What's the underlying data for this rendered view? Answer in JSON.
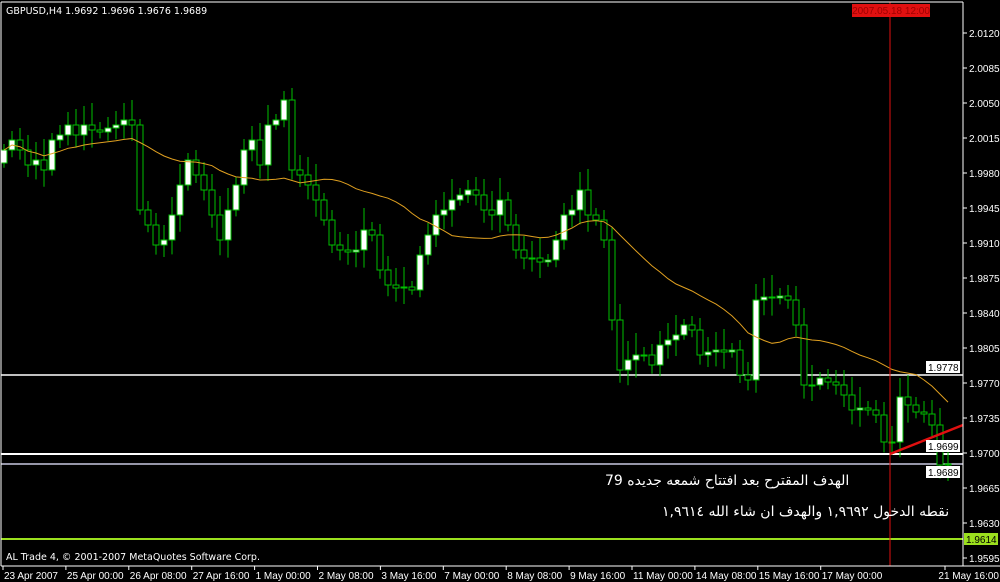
{
  "header": {
    "title": "GBPUSD,H4  1.9692 1.9696 1.9676 1.9689"
  },
  "footer": {
    "copyright": "AL Trade 4, © 2001-2007 MetaQuotes Software Corp."
  },
  "annotations": {
    "line1": "الهدف المقترح بعد افتتاح شمعه جديده 79",
    "line2": "نقطه الدخول ١,٩٦٩٢ والهدف ان شاء الله ١,٩٦١٤"
  },
  "chart_data": {
    "type": "candlestick",
    "symbol": "GBPUSD",
    "timeframe": "H4",
    "ylim": [
      1.958,
      2.0153
    ],
    "y_ticks": [
      "2.0120",
      "2.0085",
      "2.0050",
      "2.0015",
      "1.9980",
      "1.9945",
      "1.9910",
      "1.9875",
      "1.9840",
      "1.9805",
      "1.9770",
      "1.9735",
      "1.9700",
      "1.9665",
      "1.9630",
      "1.9595"
    ],
    "x_ticks": [
      "23 Apr 2007",
      "25 Apr 00:00",
      "26 Apr 08:00",
      "27 Apr 16:00",
      "1 May 00:00",
      "2 May 08:00",
      "3 May 16:00",
      "7 May 00:00",
      "8 May 08:00",
      "9 May 16:00",
      "11 May 00:00",
      "14 May 08:00",
      "15 May 16:00",
      "17 May 00:00",
      "21 May 16:00"
    ],
    "first_open": 1.999,
    "closes": [
      2.0003,
      2.0013,
      2.0003,
      1.9988,
      1.9993,
      1.9983,
      2.0013,
      2.0018,
      2.0028,
      2.0018,
      2.0028,
      2.0023,
      2.0021,
      2.0025,
      2.0028,
      2.0033,
      2.0028,
      1.9943,
      1.9928,
      1.9908,
      1.9913,
      1.9938,
      1.9968,
      1.9993,
      1.9978,
      1.9963,
      1.9938,
      1.9913,
      1.9943,
      1.9968,
      2.0003,
      2.0013,
      1.9988,
      2.0028,
      2.0033,
      2.0053,
      1.9983,
      1.9978,
      1.9968,
      1.9953,
      1.9933,
      1.9908,
      1.9903,
      1.9901,
      1.9903,
      1.9923,
      1.9918,
      1.9883,
      1.9868,
      1.9865,
      1.9866,
      1.9863,
      1.9898,
      1.9918,
      1.9938,
      1.9943,
      1.9953,
      1.9958,
      1.9963,
      1.9958,
      1.9943,
      1.9938,
      1.9953,
      1.9928,
      1.9903,
      1.9895,
      1.9895,
      1.9891,
      1.9893,
      1.9913,
      1.9938,
      1.9943,
      1.9963,
      1.9938,
      1.9933,
      1.9913,
      1.9833,
      1.9783,
      1.9793,
      1.9798,
      1.9798,
      1.9788,
      1.9808,
      1.9813,
      1.9818,
      1.9828,
      1.9823,
      1.9798,
      1.9801,
      1.9803,
      1.9801,
      1.9803,
      1.9778,
      1.9773,
      1.9853,
      1.9856,
      1.9855,
      1.9857,
      1.9853,
      1.9828,
      1.9768,
      1.9768,
      1.9775,
      1.9771,
      1.9768,
      1.9758,
      1.9743,
      1.9745,
      1.9743,
      1.9738,
      1.9711,
      1.9711,
      1.9756,
      1.9748,
      1.9741,
      1.9739,
      1.9728,
      1.9688,
      1.9689
    ],
    "moving_average": {
      "color": "#e0a020"
    },
    "horizontal_lines": [
      {
        "price": 1.9778,
        "label": "1.9778",
        "color": "#ffffff"
      },
      {
        "price": 1.9699,
        "label": "1.9699",
        "color": "#ffffff"
      },
      {
        "price": 1.9689,
        "label": "1.9689",
        "color": "#c8c8e0"
      },
      {
        "price": 1.9614,
        "label": "1.9614",
        "color": "#9be01e"
      }
    ],
    "vertical_line": {
      "label": "2007.05.18 12:00",
      "color": "#e01010"
    },
    "trendline": {
      "from_price": 1.9699,
      "to_price": 1.9728,
      "color": "#e01010"
    },
    "colors": {
      "background": "#000000",
      "candle": "#00c000",
      "bull_body": "#ffffff",
      "bear_body": "#000000",
      "axis": "#ffffff"
    }
  }
}
